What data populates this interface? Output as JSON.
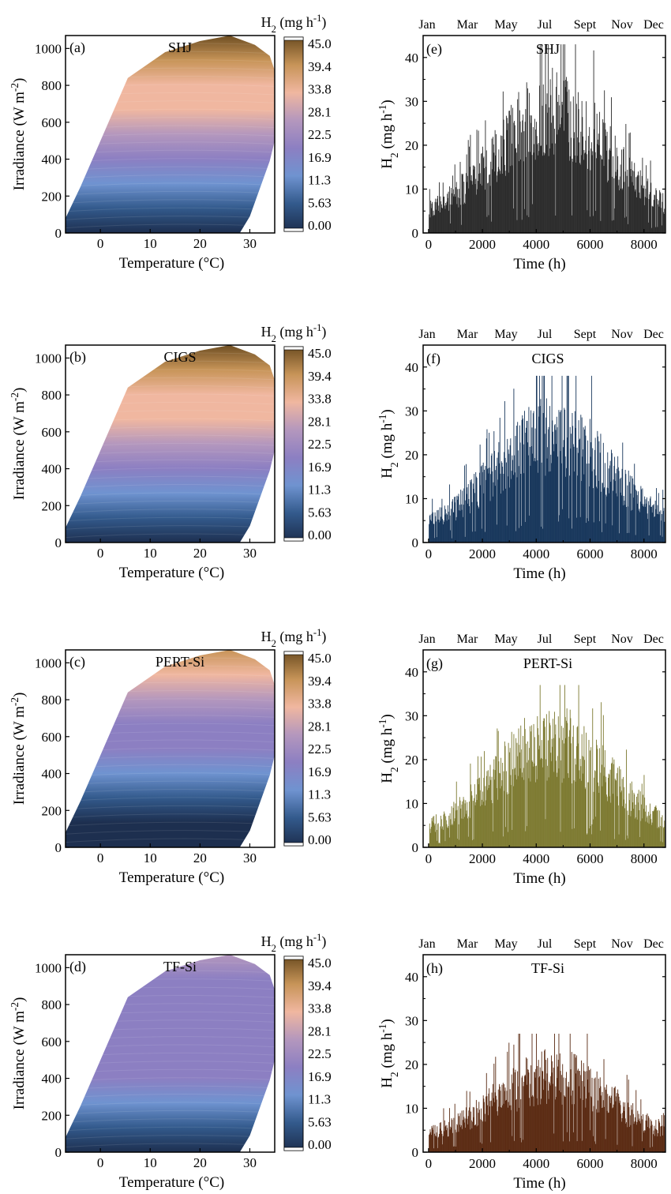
{
  "colorbar": {
    "title": "H2 (mg h-1)",
    "ticks": [
      "45.0",
      "39.4",
      "33.8",
      "28.1",
      "22.5",
      "16.9",
      "11.3",
      "5.63",
      "0.00"
    ],
    "stops": [
      "#1d2f4f",
      "#335a8c",
      "#6f93d0",
      "#8c7fc2",
      "#b497bd",
      "#f0b7a0",
      "#c79458",
      "#6e4e22"
    ]
  },
  "contour_axes": {
    "xlabel": "Temperature (°C)",
    "ylabel": "Irradiance (W m-2)",
    "xticks": [
      "0",
      "10",
      "20",
      "30"
    ],
    "yticks": [
      "0",
      "200",
      "400",
      "600",
      "800",
      "1000"
    ],
    "xlim": [
      -7,
      35
    ],
    "ylim": [
      0,
      1070
    ]
  },
  "bar_axes": {
    "xlabel": "Time (h)",
    "ylabel": "H2 (mg h-1)",
    "xticks": [
      "0",
      "2000",
      "4000",
      "6000",
      "8000"
    ],
    "yticks": [
      "0",
      "10",
      "20",
      "30",
      "40"
    ],
    "months": [
      "Jan",
      "Mar",
      "May",
      "Jul",
      "Sept",
      "Nov",
      "Dec"
    ],
    "xlim": [
      -200,
      8800
    ],
    "ylim": [
      0,
      45
    ]
  },
  "chart_data": [
    {
      "type": "heatmap",
      "panel": "(a)",
      "title": "SHJ",
      "max_value": 45.0,
      "boundary_region": "data domain",
      "xlabel": "Temperature (°C)",
      "ylabel": "Irradiance (W m-2)",
      "xlim": [
        -7,
        35
      ],
      "ylim": [
        0,
        1070
      ]
    },
    {
      "type": "bar",
      "panel": "(e)",
      "title": "SHJ",
      "color": "#2b2b2b",
      "peak": 43,
      "envelope_max": 34,
      "xlabel": "Time (h)",
      "ylabel": "H2 (mg h-1)",
      "xlim": [
        0,
        8760
      ],
      "ylim": [
        0,
        45
      ]
    },
    {
      "type": "heatmap",
      "panel": "(b)",
      "title": "CIGS",
      "max_value": 45.0,
      "xlabel": "Temperature (°C)",
      "ylabel": "Irradiance (W m-2)",
      "xlim": [
        -7,
        35
      ],
      "ylim": [
        0,
        1070
      ]
    },
    {
      "type": "bar",
      "panel": "(f)",
      "title": "CIGS",
      "color": "#17365b",
      "peak": 38,
      "envelope_max": 30,
      "xlabel": "Time (h)",
      "ylabel": "H2 (mg h-1)",
      "xlim": [
        0,
        8760
      ],
      "ylim": [
        0,
        45
      ]
    },
    {
      "type": "heatmap",
      "panel": "(c)",
      "title": "PERT-Si",
      "max_value": 45.0,
      "xlabel": "Temperature (°C)",
      "ylabel": "Irradiance (W m-2)",
      "xlim": [
        -7,
        35
      ],
      "ylim": [
        0,
        1070
      ]
    },
    {
      "type": "bar",
      "panel": "(g)",
      "title": "PERT-Si",
      "color": "#7d7a31",
      "peak": 37,
      "envelope_max": 29,
      "xlabel": "Time (h)",
      "ylabel": "H2 (mg h-1)",
      "xlim": [
        0,
        8760
      ],
      "ylim": [
        0,
        45
      ]
    },
    {
      "type": "heatmap",
      "panel": "(d)",
      "title": "TF-Si",
      "max_value": 45.0,
      "xlabel": "Temperature (°C)",
      "ylabel": "Irradiance (W m-2)",
      "xlim": [
        -7,
        35
      ],
      "ylim": [
        0,
        1070
      ]
    },
    {
      "type": "bar",
      "panel": "(h)",
      "title": "TF-Si",
      "color": "#5a2a12",
      "peak": 27,
      "envelope_max": 20,
      "xlabel": "Time (h)",
      "ylabel": "H2 (mg h-1)",
      "xlim": [
        0,
        8760
      ],
      "ylim": [
        0,
        45
      ]
    }
  ]
}
